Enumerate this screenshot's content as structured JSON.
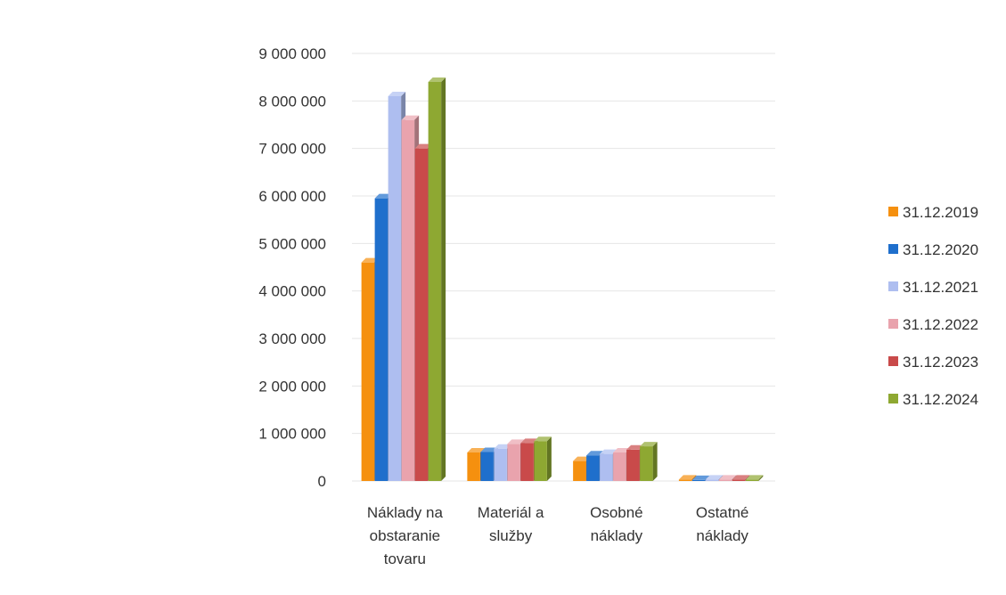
{
  "chart_data": {
    "type": "bar",
    "title": "",
    "xlabel": "",
    "ylabel": "",
    "categories": [
      [
        "Náklady na",
        "obstaranie",
        "tovaru"
      ],
      [
        "Materiál a",
        "služby"
      ],
      [
        "Osobné",
        "náklady"
      ],
      [
        "Ostatné",
        "náklady"
      ]
    ],
    "ylim": [
      0,
      9000000
    ],
    "yticks": [
      0,
      1000000,
      2000000,
      3000000,
      4000000,
      5000000,
      6000000,
      7000000,
      8000000,
      9000000
    ],
    "ytick_labels": [
      "0",
      "1 000 000",
      "2 000 000",
      "3 000 000",
      "4 000 000",
      "5 000 000",
      "6 000 000",
      "7 000 000",
      "8 000 000",
      "9 000 000"
    ],
    "grid": true,
    "legend_position": "right",
    "series": [
      {
        "name": "31.12.2019",
        "color": "#f5900f",
        "values": [
          4600000,
          600000,
          420000,
          30000
        ]
      },
      {
        "name": "31.12.2020",
        "color": "#1f6fcc",
        "values": [
          5950000,
          610000,
          540000,
          20000
        ]
      },
      {
        "name": "31.12.2021",
        "color": "#aebef0",
        "values": [
          8100000,
          680000,
          570000,
          30000
        ]
      },
      {
        "name": "31.12.2022",
        "color": "#e9a3ad",
        "values": [
          7600000,
          780000,
          600000,
          30000
        ]
      },
      {
        "name": "31.12.2023",
        "color": "#c94a4a",
        "values": [
          7000000,
          800000,
          660000,
          30000
        ]
      },
      {
        "name": "31.12.2024",
        "color": "#8ea832",
        "values": [
          8400000,
          840000,
          730000,
          30000
        ]
      }
    ]
  }
}
